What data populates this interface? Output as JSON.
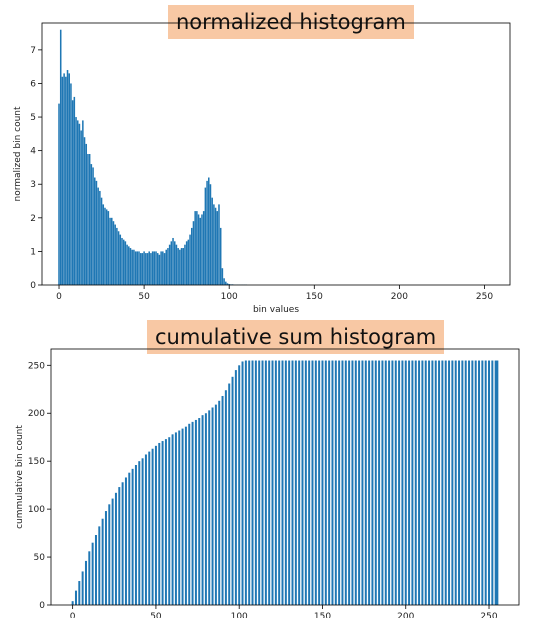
{
  "chart_data": [
    {
      "type": "bar",
      "title": "normalized histogram",
      "xlabel": "bin values",
      "ylabel": "normalized bin count",
      "xlim": [
        -10,
        265
      ],
      "ylim": [
        0,
        7.8
      ],
      "xticks": [
        0,
        50,
        100,
        150,
        200,
        250
      ],
      "yticks": [
        0,
        1,
        2,
        3,
        4,
        5,
        6,
        7
      ],
      "bar_color": "#1f77b4",
      "grid": false,
      "x": [
        0,
        1,
        2,
        3,
        4,
        5,
        6,
        7,
        8,
        9,
        10,
        11,
        12,
        13,
        14,
        15,
        16,
        17,
        18,
        19,
        20,
        21,
        22,
        23,
        24,
        25,
        26,
        27,
        28,
        29,
        30,
        31,
        32,
        33,
        34,
        35,
        36,
        37,
        38,
        39,
        40,
        41,
        42,
        43,
        44,
        45,
        46,
        47,
        48,
        49,
        50,
        51,
        52,
        53,
        54,
        55,
        56,
        57,
        58,
        59,
        60,
        61,
        62,
        63,
        64,
        65,
        66,
        67,
        68,
        69,
        70,
        71,
        72,
        73,
        74,
        75,
        76,
        77,
        78,
        79,
        80,
        81,
        82,
        83,
        84,
        85,
        86,
        87,
        88,
        89,
        90,
        91,
        92,
        93,
        94,
        95,
        96,
        97,
        98,
        99,
        100,
        101,
        102,
        103,
        104,
        105,
        106,
        107,
        108,
        109,
        110
      ],
      "values": [
        5.4,
        7.6,
        6.2,
        6.3,
        6.2,
        6.4,
        6.3,
        6.0,
        5.5,
        5.6,
        5.0,
        4.9,
        4.8,
        4.6,
        4.9,
        4.4,
        4.2,
        3.9,
        3.9,
        3.6,
        3.5,
        3.2,
        3.1,
        2.9,
        2.8,
        2.6,
        2.4,
        2.3,
        2.25,
        2.2,
        2.0,
        2.0,
        1.9,
        1.8,
        1.7,
        1.6,
        1.5,
        1.4,
        1.35,
        1.3,
        1.2,
        1.15,
        1.1,
        1.05,
        1.05,
        1.0,
        1.0,
        1.0,
        0.95,
        0.95,
        1.0,
        0.95,
        0.95,
        1.0,
        0.95,
        1.0,
        1.0,
        1.0,
        0.95,
        0.9,
        1.0,
        1.0,
        0.95,
        1.05,
        1.1,
        1.2,
        1.3,
        1.4,
        1.3,
        1.2,
        1.1,
        1.05,
        1.1,
        1.1,
        1.2,
        1.3,
        1.35,
        1.5,
        1.7,
        1.9,
        2.2,
        2.2,
        2.1,
        2.0,
        2.1,
        2.2,
        2.9,
        3.1,
        3.2,
        3.0,
        2.6,
        2.4,
        2.3,
        2.2,
        2.4,
        1.7,
        0.5,
        0.2,
        0.1,
        0.05,
        0.03,
        0.02,
        0.02,
        0.01,
        0.01,
        0.01,
        0.01,
        0.01,
        0.01,
        0.01,
        0.01
      ]
    },
    {
      "type": "bar",
      "title": "cumulative sum histogram",
      "xlabel": "",
      "ylabel": "cummulative bin count",
      "xlim": [
        -13,
        268
      ],
      "ylim": [
        0,
        267
      ],
      "xticks": [
        0,
        50,
        100,
        150,
        200,
        250
      ],
      "yticks": [
        0,
        50,
        100,
        150,
        200,
        250
      ],
      "bar_color": "#1f77b4",
      "grid": false,
      "x": [
        0,
        2,
        4,
        6,
        8,
        10,
        12,
        14,
        16,
        18,
        20,
        22,
        24,
        26,
        28,
        30,
        32,
        34,
        36,
        38,
        40,
        42,
        44,
        46,
        48,
        50,
        52,
        54,
        56,
        58,
        60,
        62,
        64,
        66,
        68,
        70,
        72,
        74,
        76,
        78,
        80,
        82,
        84,
        86,
        88,
        90,
        92,
        94,
        96,
        98,
        100,
        102,
        104,
        106,
        108,
        110,
        112,
        114,
        116,
        118,
        120,
        122,
        124,
        126,
        128,
        130,
        132,
        134,
        136,
        138,
        140,
        142,
        144,
        146,
        148,
        150,
        152,
        154,
        156,
        158,
        160,
        162,
        164,
        166,
        168,
        170,
        172,
        174,
        176,
        178,
        180,
        182,
        184,
        186,
        188,
        190,
        192,
        194,
        196,
        198,
        200,
        202,
        204,
        206,
        208,
        210,
        212,
        214,
        216,
        218,
        220,
        222,
        224,
        226,
        228,
        230,
        232,
        234,
        236,
        238,
        240,
        242,
        244,
        246,
        248,
        250,
        252,
        254,
        255
      ],
      "values": [
        4,
        15,
        25,
        35,
        46,
        56,
        65,
        73,
        82,
        90,
        98,
        105,
        111,
        117,
        123,
        128,
        133,
        138,
        142,
        146,
        150,
        153,
        157,
        160,
        163,
        166,
        169,
        171,
        173,
        175,
        178,
        180,
        182,
        184,
        186,
        189,
        191,
        193,
        195,
        198,
        200,
        203,
        206,
        209,
        213,
        218,
        224,
        231,
        238,
        245,
        250,
        254,
        255,
        255,
        255,
        255,
        255,
        255,
        255,
        255,
        255,
        255,
        255,
        255,
        255,
        255,
        255,
        255,
        255,
        255,
        255,
        255,
        255,
        255,
        255,
        255,
        255,
        255,
        255,
        255,
        255,
        255,
        255,
        255,
        255,
        255,
        255,
        255,
        255,
        255,
        255,
        255,
        255,
        255,
        255,
        255,
        255,
        255,
        255,
        255,
        255,
        255,
        255,
        255,
        255,
        255,
        255,
        255,
        255,
        255,
        255,
        255,
        255,
        255,
        255,
        255,
        255,
        255,
        255,
        255,
        255,
        255,
        255,
        255,
        255,
        255,
        255,
        255,
        255
      ]
    }
  ]
}
